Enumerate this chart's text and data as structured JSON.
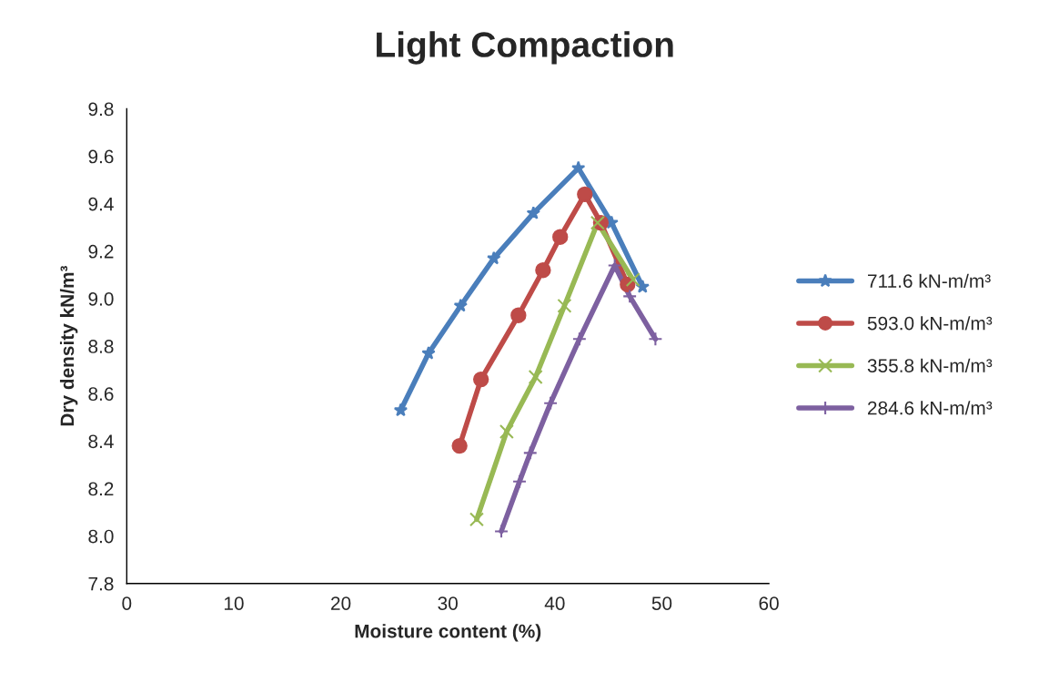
{
  "chart_data": {
    "type": "line",
    "title": "Light Compaction",
    "xlabel": "Moisture content (%)",
    "ylabel": "Dry density kN/m³",
    "xlim": [
      0,
      60
    ],
    "xticks": [
      0,
      10,
      20,
      30,
      40,
      50,
      60
    ],
    "ylim": [
      7.8,
      9.8
    ],
    "yticks": [
      {
        "value": 7.8,
        "label": "7.8"
      },
      {
        "value": 8.0,
        "label": "8.0"
      },
      {
        "value": 8.2,
        "label": "8.2"
      },
      {
        "value": 8.4,
        "label": "8.4"
      },
      {
        "value": 8.6,
        "label": "8.6"
      },
      {
        "value": 8.8,
        "label": "8.8"
      },
      {
        "value": 9.0,
        "label": "9.0"
      },
      {
        "value": 9.2,
        "label": "9.2"
      },
      {
        "value": 9.4,
        "label": "9.4"
      },
      {
        "value": 9.6,
        "label": "9.6"
      },
      {
        "value": 9.8,
        "label": "9.8"
      }
    ],
    "grid": false,
    "legend": "right",
    "series": [
      {
        "name": "711.6 kN-m/m³",
        "color": "#4a7ebb",
        "marker": "star",
        "x": [
          25.6,
          28.2,
          31.2,
          34.3,
          38.0,
          42.2,
          45.3,
          48.2
        ],
        "values": [
          8.53,
          8.77,
          8.97,
          9.17,
          9.36,
          9.55,
          9.32,
          9.05
        ]
      },
      {
        "name": "593.0 kN-m/m³",
        "color": "#be4b48",
        "marker": "circle",
        "x": [
          31.1,
          33.1,
          36.6,
          38.9,
          40.5,
          42.8,
          44.3,
          46.8
        ],
        "values": [
          8.38,
          8.66,
          8.93,
          9.12,
          9.26,
          9.44,
          9.32,
          9.06
        ]
      },
      {
        "name": "355.8 kN-m/m³",
        "color": "#98b954",
        "marker": "cross",
        "x": [
          32.7,
          35.5,
          38.2,
          40.9,
          44.0,
          47.3
        ],
        "values": [
          8.07,
          8.44,
          8.67,
          8.97,
          9.32,
          9.08
        ]
      },
      {
        "name": "284.6 kN-m/m³",
        "color": "#7d60a0",
        "marker": "plus",
        "x": [
          35.0,
          36.7,
          37.7,
          39.6,
          42.3,
          45.6,
          47.0,
          49.4
        ],
        "values": [
          8.02,
          8.23,
          8.35,
          8.56,
          8.83,
          9.14,
          9.01,
          8.83
        ]
      }
    ]
  }
}
